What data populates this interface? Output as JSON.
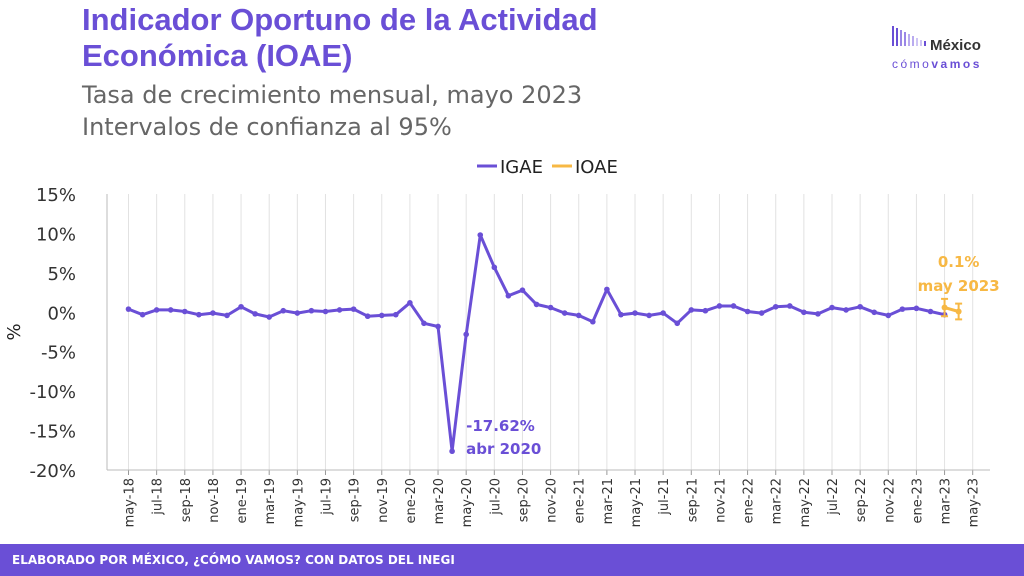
{
  "header": {
    "title": "Indicador Oportuno de la Actividad Económica (IOAE)",
    "subtitle1": "Tasa de crecimiento mensual, mayo 2023",
    "subtitle2": "Intervalos de confianza al 95%"
  },
  "logo": {
    "name": "México",
    "tagline_a": "cómo",
    "tagline_b": "vamos"
  },
  "footer": {
    "text": "ELABORADO POR MÉXICO, ¿CÓMO VAMOS? CON DATOS DEL INEGI"
  },
  "colors": {
    "igae": "#6a4fd6",
    "ioae": "#f7b844",
    "footer": "#6a4fd6"
  },
  "chart_data": {
    "type": "line",
    "ylabel": "%",
    "ylim": [
      -20,
      15
    ],
    "yticks": [
      15,
      10,
      5,
      0,
      -5,
      -10,
      -15,
      -20
    ],
    "ytick_labels": [
      "15%",
      "10%",
      "5%",
      "0%",
      "-5%",
      "-10%",
      "-15%",
      "-20%"
    ],
    "xtick_labels": [
      "may-18",
      "jul-18",
      "sep-18",
      "nov-18",
      "ene-19",
      "mar-19",
      "may-19",
      "jul-19",
      "sep-19",
      "nov-19",
      "ene-20",
      "mar-20",
      "may-20",
      "jul-20",
      "sep-20",
      "nov-20",
      "ene-21",
      "mar-21",
      "may-21",
      "jul-21",
      "sep-21",
      "nov-21",
      "ene-22",
      "mar-22",
      "may-22",
      "jul-22",
      "sep-22",
      "nov-22",
      "ene-23",
      "mar-23",
      "may-23"
    ],
    "grid": "vertical",
    "legend_position": "top-center",
    "series": [
      {
        "name": "IGAE",
        "start": "may-18",
        "values": [
          0.4,
          -0.3,
          0.3,
          0.3,
          0.1,
          -0.3,
          -0.1,
          -0.4,
          0.7,
          -0.2,
          -0.6,
          0.2,
          -0.1,
          0.2,
          0.1,
          0.3,
          0.4,
          -0.5,
          -0.4,
          -0.3,
          1.2,
          -1.4,
          -1.8,
          -17.62,
          -2.8,
          9.8,
          5.7,
          2.1,
          2.8,
          1.0,
          0.6,
          -0.1,
          -0.4,
          -1.2,
          2.9,
          -0.3,
          -0.1,
          -0.4,
          -0.1,
          -1.4,
          0.3,
          0.2,
          0.8,
          0.8,
          0.1,
          -0.1,
          0.7,
          0.8,
          0.0,
          -0.2,
          0.6,
          0.3,
          0.7,
          0.0,
          -0.4,
          0.4,
          0.5,
          0.1,
          -0.3
        ]
      },
      {
        "name": "IOAE",
        "x": [
          "abr-23",
          "may-23"
        ],
        "values": [
          0.6,
          0.1
        ],
        "lower": [
          -0.5,
          -0.9
        ],
        "upper": [
          1.7,
          1.1
        ]
      }
    ],
    "annotations": [
      {
        "label_value": "-17.62%",
        "label_date": "abr 2020"
      },
      {
        "label_value": "0.1%",
        "label_date": "may 2023"
      }
    ]
  }
}
